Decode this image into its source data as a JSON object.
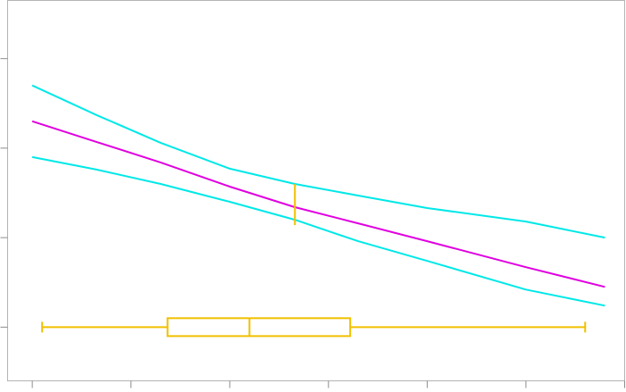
{
  "chart_data": {
    "type": "line",
    "title": "",
    "xlabel": "",
    "ylabel": "",
    "grid": false,
    "xlim": [
      -0.25,
      6.0
    ],
    "ylim": [
      -0.6,
      3.65
    ],
    "x_ticks": [
      0,
      1,
      2,
      3,
      4,
      5,
      6
    ],
    "y_ticks": [
      0,
      1,
      2,
      3
    ],
    "series": [
      {
        "role": "fit",
        "color": "#e000e0",
        "x": [
          0,
          0.65,
          1.3,
          2.0,
          2.66,
          3.3,
          4.0,
          5.0,
          5.8
        ],
        "y": [
          2.3,
          2.07,
          1.84,
          1.57,
          1.34,
          1.16,
          0.96,
          0.67,
          0.45
        ]
      },
      {
        "role": "upper-band",
        "color": "#00e8e8",
        "x": [
          0,
          0.65,
          1.3,
          2.0,
          2.66,
          3.3,
          4.0,
          5.0,
          5.8
        ],
        "y": [
          2.7,
          2.37,
          2.06,
          1.77,
          1.6,
          1.47,
          1.33,
          1.18,
          1.0
        ]
      },
      {
        "role": "lower-band",
        "color": "#00e8e8",
        "x": [
          0,
          0.65,
          1.3,
          2.0,
          2.66,
          3.3,
          4.0,
          5.0,
          5.8
        ],
        "y": [
          1.9,
          1.76,
          1.6,
          1.4,
          1.2,
          0.96,
          0.74,
          0.42,
          0.24
        ]
      }
    ],
    "boxplot": {
      "color": "#f0c000",
      "y": 0,
      "min": 0.1,
      "q1": 1.37,
      "median": 2.2,
      "q3": 3.22,
      "max": 5.6,
      "half_height": 0.1
    },
    "marker": {
      "color": "#f0c000",
      "x": 2.66,
      "y_low": 1.14,
      "y_high": 1.6
    }
  }
}
